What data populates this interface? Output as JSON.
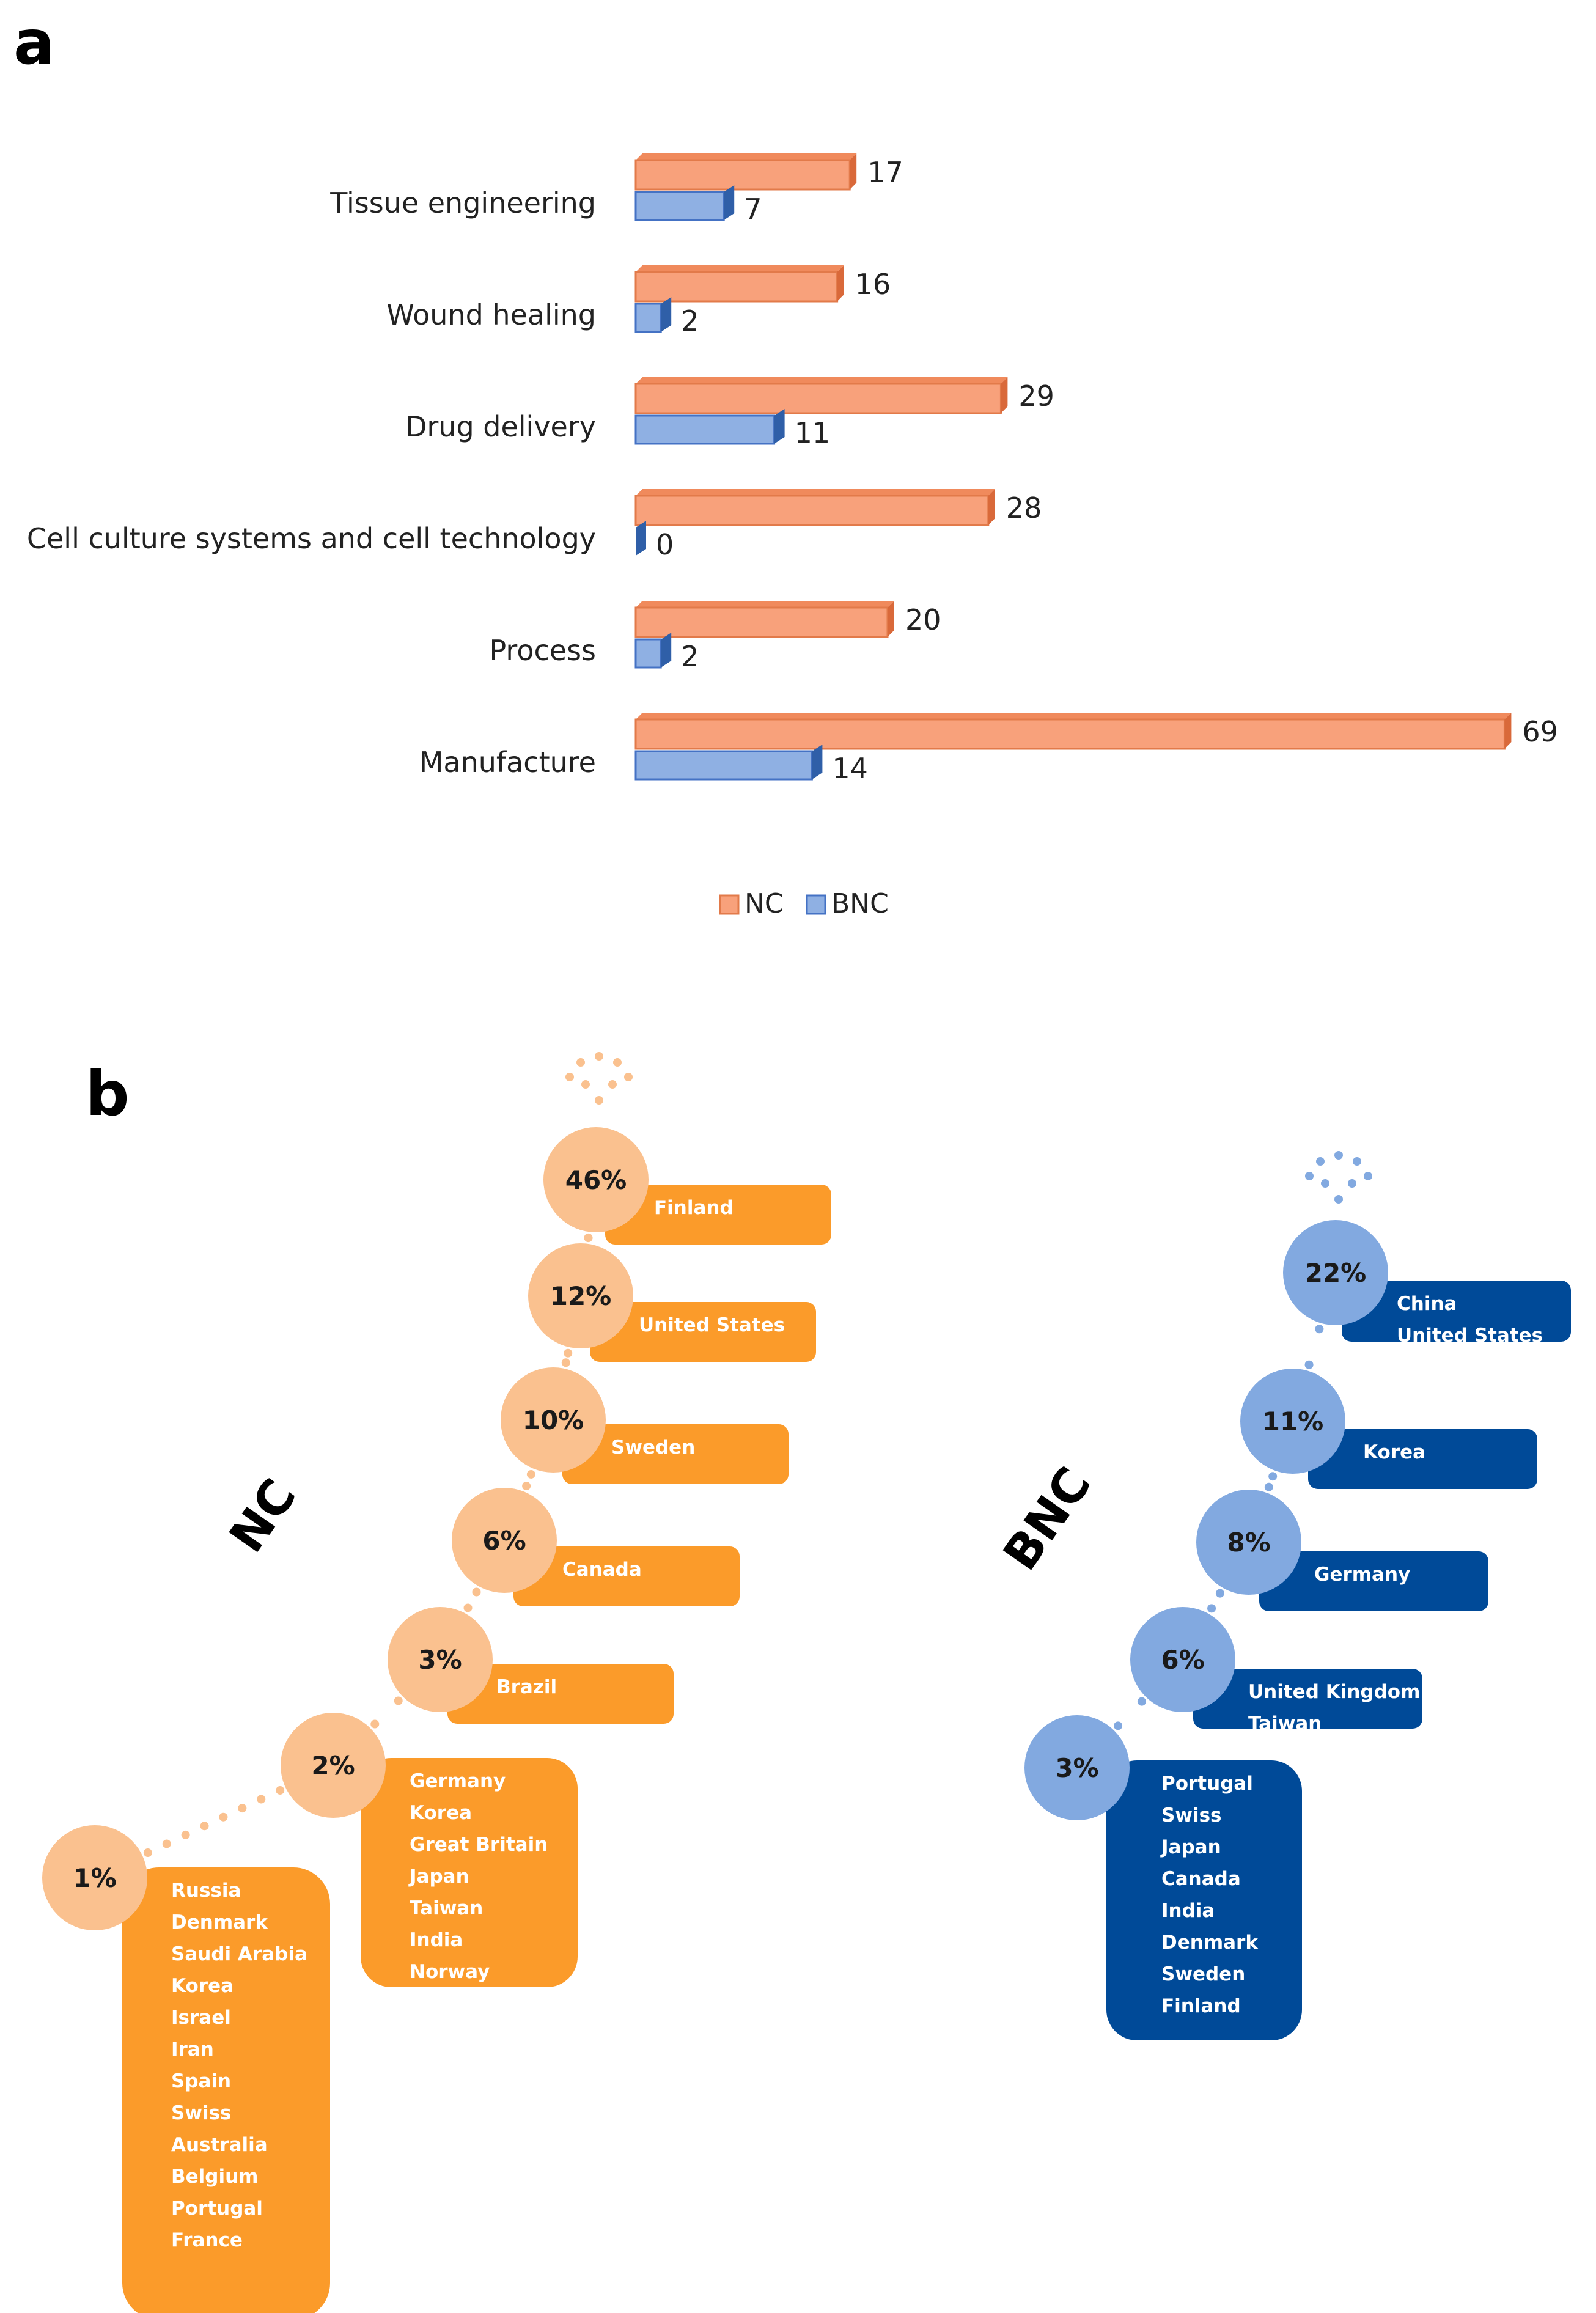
{
  "panel_a_label": "a",
  "panel_b_label": "b",
  "chart_data": [
    {
      "type": "bar",
      "orientation": "horizontal",
      "title": "",
      "xlabel": "",
      "ylabel": "",
      "xlim": [
        0,
        70
      ],
      "grid": false,
      "legend": "bottom-center",
      "categories": [
        "Tissue engineering",
        "Wound healing",
        "Drug delivery",
        "Cell culture systems and cell technology",
        "Process",
        "Manufacture"
      ],
      "series": [
        {
          "name": "NC",
          "color": "#F8A17B",
          "edge": "#E27A4A",
          "values": [
            17,
            16,
            29,
            28,
            20,
            69
          ]
        },
        {
          "name": "BNC",
          "color": "#8FB0E3",
          "edge": "#4472C4",
          "values": [
            7,
            2,
            11,
            0,
            2,
            14
          ]
        }
      ]
    },
    {
      "type": "staircase-percent-list",
      "groups": [
        {
          "name": "NC",
          "circle_color": "#FAC18F",
          "box_color": "#FB9B2A",
          "steps": [
            {
              "percent": "46%",
              "countries": [
                "Finland"
              ]
            },
            {
              "percent": "12%",
              "countries": [
                "United States"
              ]
            },
            {
              "percent": "10%",
              "countries": [
                "Sweden"
              ]
            },
            {
              "percent": "6%",
              "countries": [
                "Canada"
              ]
            },
            {
              "percent": "3%",
              "countries": [
                "Brazil"
              ]
            },
            {
              "percent": "2%",
              "countries": [
                "Germany",
                "Korea",
                "Great Britain",
                "Japan",
                "Taiwan",
                "India",
                "Norway"
              ]
            },
            {
              "percent": "1%",
              "countries": [
                "Russia",
                "Denmark",
                "Saudi Arabia",
                "Korea",
                "Israel",
                "Iran",
                "Spain",
                "Swiss",
                "Australia",
                "Belgium",
                "Portugal",
                "France"
              ]
            }
          ]
        },
        {
          "name": "BNC",
          "circle_color": "#82A9E0",
          "box_color": "#004A98",
          "steps": [
            {
              "percent": "22%",
              "countries": [
                "China",
                "United States"
              ]
            },
            {
              "percent": "11%",
              "countries": [
                "Korea"
              ]
            },
            {
              "percent": "8%",
              "countries": [
                "Germany"
              ]
            },
            {
              "percent": "6%",
              "countries": [
                "United Kingdom",
                "Taiwan"
              ]
            },
            {
              "percent": "3%",
              "countries": [
                "Portugal",
                "Swiss",
                "Japan",
                "Canada",
                "India",
                "Denmark",
                "Sweden",
                "Finland"
              ]
            }
          ]
        }
      ]
    }
  ]
}
